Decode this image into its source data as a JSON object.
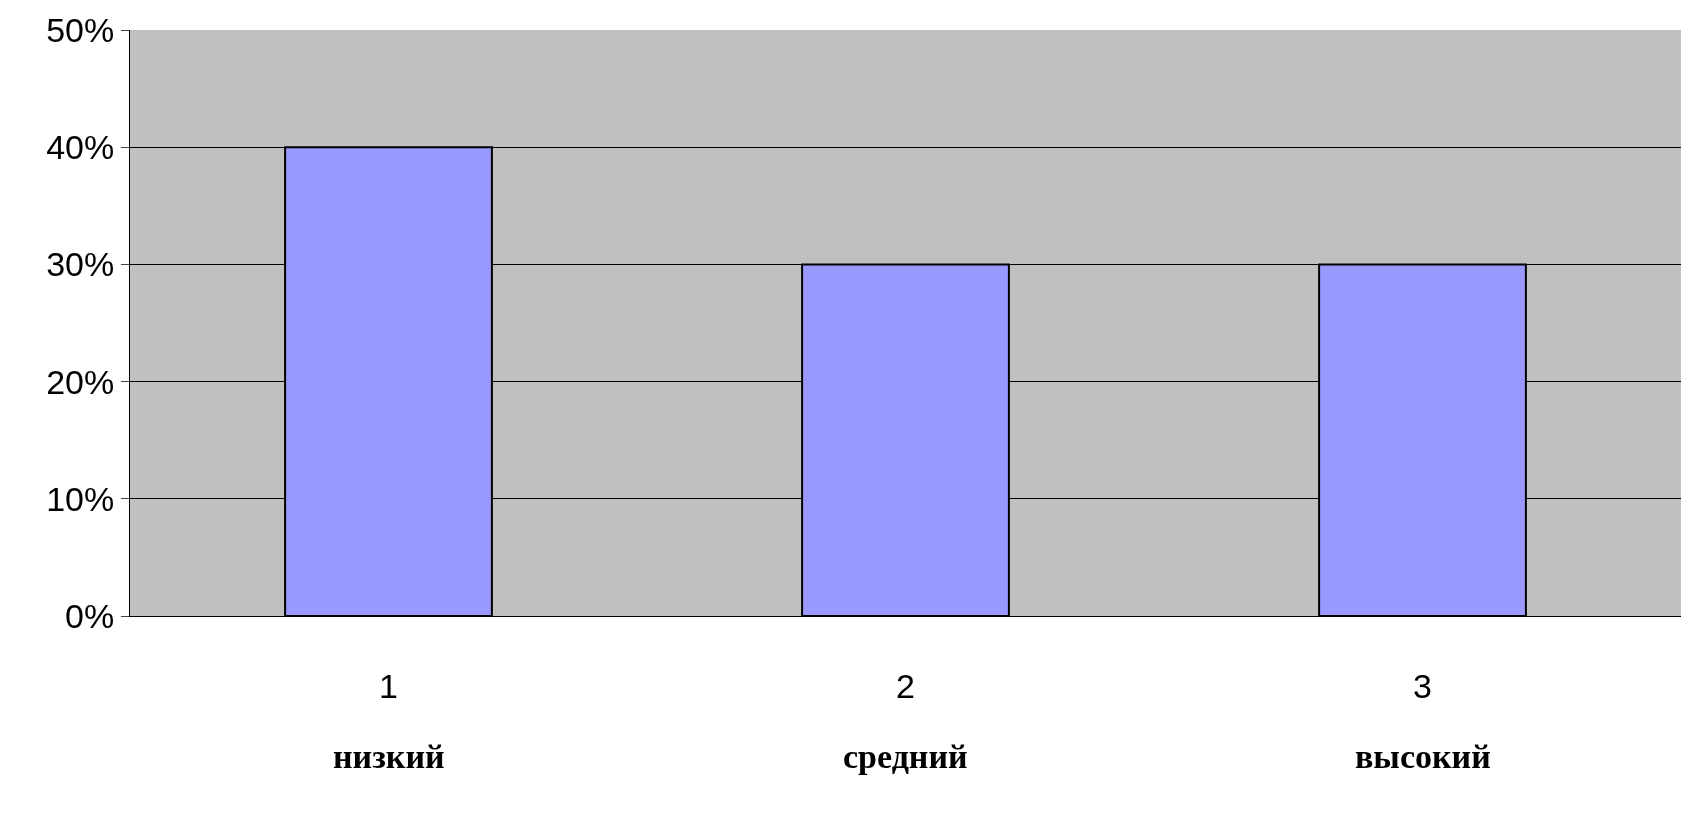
{
  "chart_data": {
    "type": "bar",
    "categories": [
      "1",
      "2",
      "3"
    ],
    "values": [
      40,
      30,
      30
    ],
    "color": "#9999ff",
    "ylim": [
      0,
      50
    ],
    "yticks": [
      {
        "value": 0,
        "label": "0%"
      },
      {
        "value": 10,
        "label": "10%"
      },
      {
        "value": 20,
        "label": "20%"
      },
      {
        "value": 30,
        "label": "30%"
      },
      {
        "value": 40,
        "label": "40%"
      },
      {
        "value": 50,
        "label": "50%"
      }
    ],
    "grid": "y",
    "annotations": [
      "низкий",
      "средний",
      "высокий"
    ]
  }
}
